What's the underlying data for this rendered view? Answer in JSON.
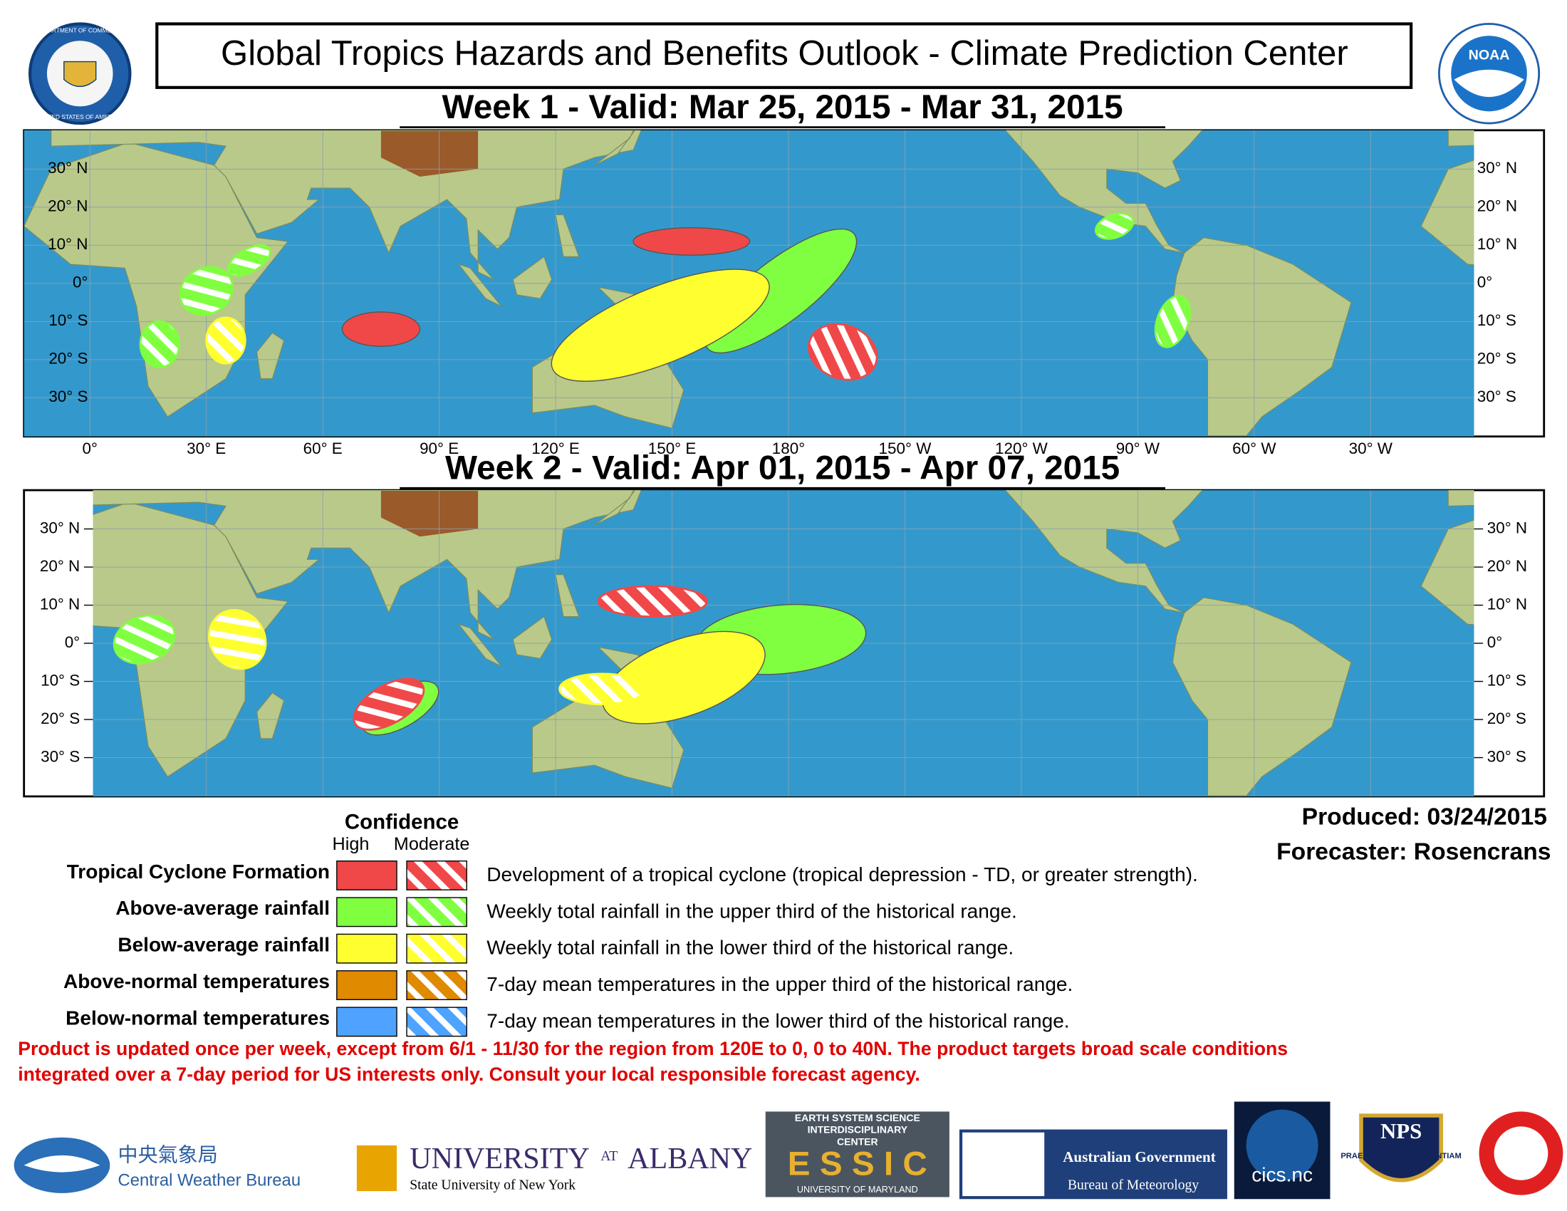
{
  "header": {
    "title": "Global Tropics Hazards and Benefits Outlook - Climate Prediction Center",
    "seal_top": "DEPARTMENT OF COMMERCE",
    "seal_bottom": "UNITED STATES OF AMERICA",
    "noaa": "NOAA"
  },
  "maps": [
    {
      "heading": "Week 1 - Valid: Mar 25, 2015 - Mar 31, 2015"
    },
    {
      "heading": "Week 2 - Valid: Apr 01, 2015 - Apr 07, 2015"
    }
  ],
  "lat_labels": [
    "30° N",
    "20° N",
    "10° N",
    "0°",
    "10° S",
    "20° S",
    "30° S"
  ],
  "lon_labels": [
    "0°",
    "30° E",
    "60° E",
    "90° E",
    "120° E",
    "150° E",
    "180°",
    "150° W",
    "120° W",
    "90° W",
    "60° W",
    "30° W"
  ],
  "legend": {
    "heading": "Confidence",
    "columns": [
      "High",
      "Moderate"
    ],
    "rows": [
      {
        "label": "Tropical Cyclone Formation",
        "description": "Development of a tropical cyclone (tropical depression - TD, or greater strength).",
        "color": "#f04848"
      },
      {
        "label": "Above-average rainfall",
        "description": "Weekly total rainfall in the upper third of the historical range.",
        "color": "#80ff40"
      },
      {
        "label": "Below-average rainfall",
        "description": "Weekly total rainfall in the lower third of the historical range.",
        "color": "#ffff30"
      },
      {
        "label": "Above-normal temperatures",
        "description": "7-day mean temperatures in the upper third of the historical range.",
        "color": "#e08a00"
      },
      {
        "label": "Below-normal temperatures",
        "description": "7-day mean temperatures in the lower third of the historical range.",
        "color": "#4da3ff"
      }
    ]
  },
  "produced": "Produced: 03/24/2015",
  "forecaster": "Forecaster: Rosencrans",
  "disclaimer": [
    "Product is updated once per week, except from 6/1 - 11/30 for the region from 120E to 0, 0 to 40N. The product targets broad scale conditions",
    "integrated over a 7-day period for US interests only.  Consult your local responsible forecast agency."
  ],
  "logos": {
    "cwb_chinese": "中央氣象局",
    "cwb": "Central Weather Bureau",
    "albany": "UNIVERSITY",
    "albany_at": "AT",
    "albany_name": "ALBANY",
    "albany_sub": "State University of New York",
    "essic_top": "EARTH SYSTEM SCIENCE",
    "essic_mid": "INTERDISCIPLINARY",
    "essic_center": "CENTER",
    "essic": "E S S I C",
    "essic_bottom": "UNIVERSITY OF MARYLAND",
    "aus_gov": "Australian Government",
    "bom": "Bureau of Meteorology",
    "cics": "cics.nc",
    "nps": "NPS",
    "nps_motto": "PRAESTANTIA PER SCIENTIAM"
  }
}
